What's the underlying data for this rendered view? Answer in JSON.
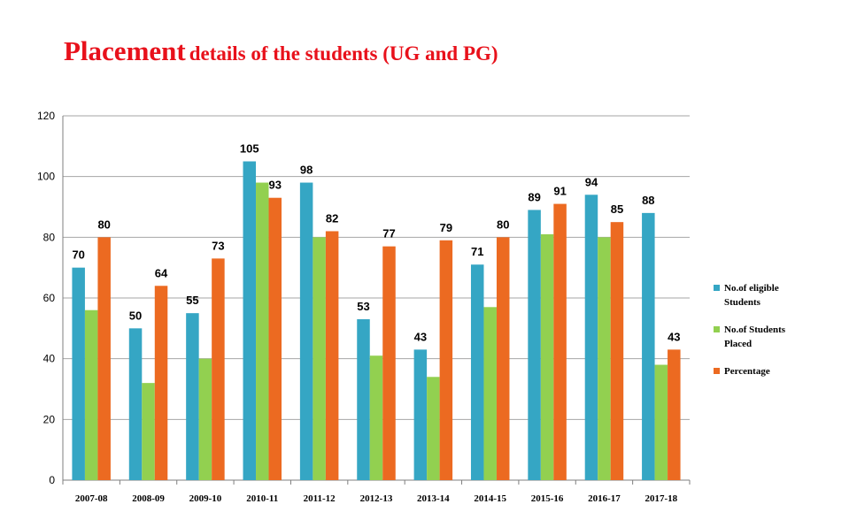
{
  "title": {
    "emphasis": "Placement",
    "rest": "details of the students (UG and PG)"
  },
  "colors": {
    "eligible": "#35a6c4",
    "placed": "#92d050",
    "percentage": "#ec6a21",
    "grid": "#a6a6a6",
    "title": "#e8111b"
  },
  "chart_data": {
    "type": "bar",
    "title": "Placement details of the students (UG and PG)",
    "categories": [
      "2007-08",
      "2008-09",
      "2009-10",
      "2010-11",
      "2011-12",
      "2012-13",
      "2013-14",
      "2014-15",
      "2015-16",
      "2016-17",
      "2017-18"
    ],
    "series": [
      {
        "name": "No.of eligible Students",
        "values": [
          70,
          50,
          55,
          105,
          98,
          53,
          43,
          71,
          89,
          94,
          88
        ],
        "labeled": true
      },
      {
        "name": "No.of Students Placed",
        "values": [
          56,
          32,
          40,
          98,
          80,
          41,
          34,
          57,
          81,
          80,
          38
        ],
        "labeled": false
      },
      {
        "name": "Percentage",
        "values": [
          80,
          64,
          73,
          93,
          82,
          77,
          79,
          80,
          91,
          85,
          43
        ],
        "labeled": true
      }
    ],
    "ylim": [
      0,
      120
    ],
    "yticks": [
      0,
      20,
      40,
      60,
      80,
      100,
      120
    ],
    "grid": true,
    "legend_position": "right"
  }
}
